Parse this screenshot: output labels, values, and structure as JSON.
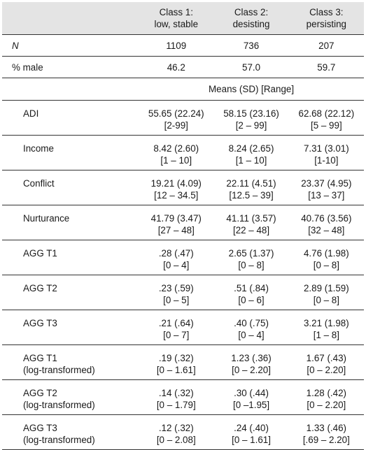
{
  "header": {
    "col1": [
      "Class 1:",
      "low, stable"
    ],
    "col2": [
      "Class 2:",
      "desisting"
    ],
    "col3": [
      "Class 3:",
      "persisting"
    ]
  },
  "simple_rows": [
    {
      "label": "N",
      "values": [
        "1109",
        "736",
        "207"
      ]
    },
    {
      "label": "% male",
      "values": [
        "46.2",
        "57.0",
        "59.7"
      ]
    }
  ],
  "means_heading": "Means (SD) [Range]",
  "rows": [
    {
      "label": [
        "ADI"
      ],
      "c1": [
        "55.65 (22.24)",
        "[2-99]"
      ],
      "c2": [
        "58.15 (23.16)",
        "[2 – 99]"
      ],
      "c3": [
        "62.68 (22.12)",
        "[5 – 99]"
      ]
    },
    {
      "label": [
        "Income"
      ],
      "c1": [
        "8.42 (2.60)",
        "[1 – 10]"
      ],
      "c2": [
        "8.24 (2.65)",
        "[1 – 10]"
      ],
      "c3": [
        "7.31 (3.01)",
        "[1-10]"
      ]
    },
    {
      "label": [
        "Conflict"
      ],
      "c1": [
        "19.21 (4.09)",
        "[12 – 34.5]"
      ],
      "c2": [
        "22.11 (4.51)",
        "[12.5 – 39]"
      ],
      "c3": [
        "23.37 (4.95)",
        "[13 – 37]"
      ]
    },
    {
      "label": [
        "Nurturance"
      ],
      "c1": [
        "41.79 (3.47)",
        "[27 – 48]"
      ],
      "c2": [
        "41.11 (3.57)",
        "[22 – 48]"
      ],
      "c3": [
        "40.76 (3.56)",
        "[32 – 48]"
      ]
    },
    {
      "label": [
        "AGG T1"
      ],
      "c1": [
        ".28 (.47)",
        "[0 – 4]"
      ],
      "c2": [
        "2.65 (1.37)",
        "[0 – 8]"
      ],
      "c3": [
        "4.76 (1.98)",
        "[0 – 8]"
      ]
    },
    {
      "label": [
        "AGG T2"
      ],
      "c1": [
        ".23 (.59)",
        "[0 – 5]"
      ],
      "c2": [
        ".51 (.84)",
        "[0 – 6]"
      ],
      "c3": [
        "2.89 (1.59)",
        "[0 – 8]"
      ]
    },
    {
      "label": [
        "AGG T3"
      ],
      "c1": [
        ".21 (.64)",
        "[0 – 7]"
      ],
      "c2": [
        ".40 (.75)",
        "[0 – 4]"
      ],
      "c3": [
        "3.21 (1.98)",
        "[1 – 8]"
      ]
    },
    {
      "label": [
        "AGG T1",
        "(log-transformed)"
      ],
      "c1": [
        ".19 (.32)",
        "[0 – 1.61]"
      ],
      "c2": [
        "1.23 (.36)",
        "[0 – 2.20]"
      ],
      "c3": [
        "1.67 (.43)",
        "[0 – 2.20]"
      ]
    },
    {
      "label": [
        "AGG T2",
        "(log-transformed)"
      ],
      "c1": [
        ".14 (.32)",
        "[0 – 1.79]"
      ],
      "c2": [
        ".30 (.44)",
        "[0 –1.95]"
      ],
      "c3": [
        "1.28 (.42)",
        "[0 – 2.20]"
      ]
    },
    {
      "label": [
        "AGG T3",
        "(log-transformed)"
      ],
      "c1": [
        ".12 (.32)",
        "[0 – 2.08]"
      ],
      "c2": [
        ".24 (.40)",
        "[0 – 1.61]"
      ],
      "c3": [
        "1.33 (.46)",
        "[.69 – 2.20]"
      ]
    }
  ]
}
